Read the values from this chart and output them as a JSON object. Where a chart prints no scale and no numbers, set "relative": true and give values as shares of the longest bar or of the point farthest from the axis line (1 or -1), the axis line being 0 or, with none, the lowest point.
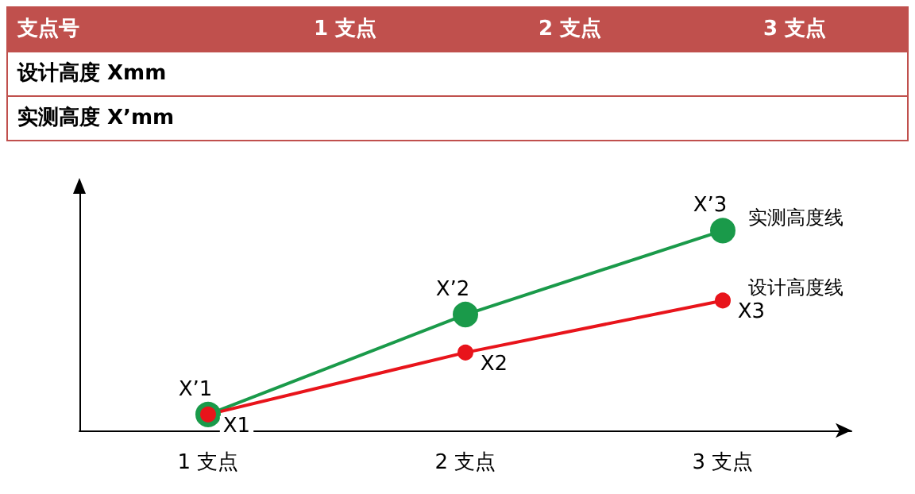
{
  "chart_data": [
    {
      "type": "other",
      "categories": [
        "支点号",
        "1 支点",
        "2 支点",
        "3 支点"
      ],
      "annotations": [
        "设计高度 Xmm",
        "实测高度 X’mm"
      ],
      "color": "#c0504d"
    },
    {
      "type": "line",
      "relative": true,
      "categories": [
        "1 支点",
        "2 支点",
        "3 支点"
      ],
      "marker": "circle",
      "legend": false,
      "grid": false,
      "series": [
        {
          "name": "实测高度线",
          "color": "#1a9a4a",
          "values": [
            0.08,
            0.58,
            1
          ]
        },
        {
          "name": "设计高度线",
          "color": "#e8141b",
          "values": [
            0.08,
            0.39,
            0.65
          ]
        }
      ],
      "annotations": [
        {
          "text": "X’1",
          "x": "1 支点",
          "y": 0.08
        },
        {
          "text": "X1",
          "x": "1 支点",
          "y": 0.08
        },
        {
          "text": "X’2",
          "x": "2 支点",
          "y": 0.58
        },
        {
          "text": "X2",
          "x": "2 支点",
          "y": 0.39
        },
        {
          "text": "X’3",
          "x": "3 支点",
          "y": 1
        },
        {
          "text": "X3",
          "x": "3 支点",
          "y": 0.65
        }
      ]
    }
  ]
}
